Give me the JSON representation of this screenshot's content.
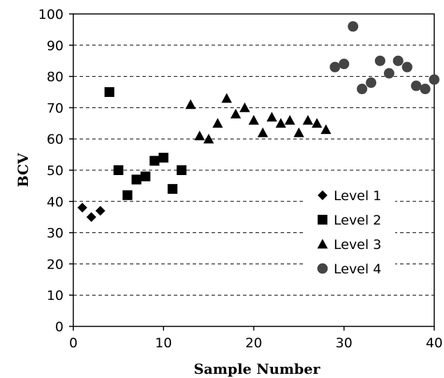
{
  "chart_data": {
    "type": "scatter",
    "title": "",
    "xlabel": "Sample Number",
    "ylabel": "BCV",
    "xlim": [
      0,
      40
    ],
    "ylim": [
      0,
      100
    ],
    "x_ticks": [
      0,
      10,
      20,
      30,
      40
    ],
    "y_ticks": [
      0,
      10,
      20,
      30,
      40,
      50,
      60,
      70,
      80,
      90,
      100
    ],
    "grid": "horizontal dashed",
    "legend_position": "right",
    "series": [
      {
        "name": "Level 1",
        "marker": "diamond",
        "color": "#000000",
        "points": [
          [
            1,
            38
          ],
          [
            2,
            35
          ],
          [
            3,
            37
          ]
        ]
      },
      {
        "name": "Level 2",
        "marker": "square",
        "color": "#000000",
        "points": [
          [
            4,
            75
          ],
          [
            5,
            50
          ],
          [
            6,
            42
          ],
          [
            7,
            47
          ],
          [
            8,
            48
          ],
          [
            9,
            53
          ],
          [
            10,
            54
          ],
          [
            11,
            44
          ],
          [
            12,
            50
          ]
        ]
      },
      {
        "name": "Level 3",
        "marker": "triangle",
        "color": "#000000",
        "points": [
          [
            13,
            71
          ],
          [
            14,
            61
          ],
          [
            15,
            60
          ],
          [
            16,
            65
          ],
          [
            17,
            73
          ],
          [
            18,
            68
          ],
          [
            19,
            70
          ],
          [
            20,
            66
          ],
          [
            21,
            62
          ],
          [
            22,
            67
          ],
          [
            23,
            65
          ],
          [
            24,
            66
          ],
          [
            25,
            62
          ],
          [
            26,
            66
          ],
          [
            27,
            65
          ],
          [
            28,
            63
          ]
        ]
      },
      {
        "name": "Level 4",
        "marker": "circle",
        "color": "#444444",
        "points": [
          [
            29,
            83
          ],
          [
            30,
            84
          ],
          [
            31,
            96
          ],
          [
            32,
            76
          ],
          [
            33,
            78
          ],
          [
            34,
            85
          ],
          [
            35,
            81
          ],
          [
            36,
            85
          ],
          [
            37,
            83
          ],
          [
            38,
            77
          ],
          [
            39,
            76
          ],
          [
            40,
            79
          ]
        ]
      }
    ]
  }
}
